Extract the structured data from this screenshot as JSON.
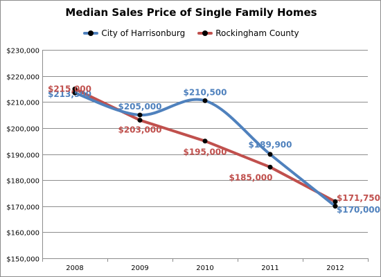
{
  "chart_data": {
    "type": "line",
    "title": "Median Sales Price of Single Family Homes",
    "xlabel": "",
    "ylabel": "",
    "x": [
      "2008",
      "2009",
      "2010",
      "2011",
      "2012"
    ],
    "ylim": [
      150000,
      230000
    ],
    "ytick_labels": [
      "$150,000",
      "$160,000",
      "$170,000",
      "$180,000",
      "$190,000",
      "$200,000",
      "$210,000",
      "$220,000",
      "$230,000"
    ],
    "legend_position": "top-center",
    "grid": true,
    "series": [
      {
        "name": "City of Harrisonburg",
        "color": "#4f81bd",
        "smooth": true,
        "values": [
          213500,
          205000,
          210500,
          189900,
          170000
        ],
        "labels": [
          "$213,500",
          "$205,000",
          "$210,500",
          "$189,900",
          "$170,000"
        ]
      },
      {
        "name": "Rockingham County",
        "color": "#c0504d",
        "smooth": false,
        "values": [
          215000,
          203000,
          195000,
          185000,
          171750
        ],
        "labels": [
          "$215,000",
          "$203,000",
          "$195,000",
          "$185,000",
          "$171,750"
        ]
      }
    ]
  }
}
